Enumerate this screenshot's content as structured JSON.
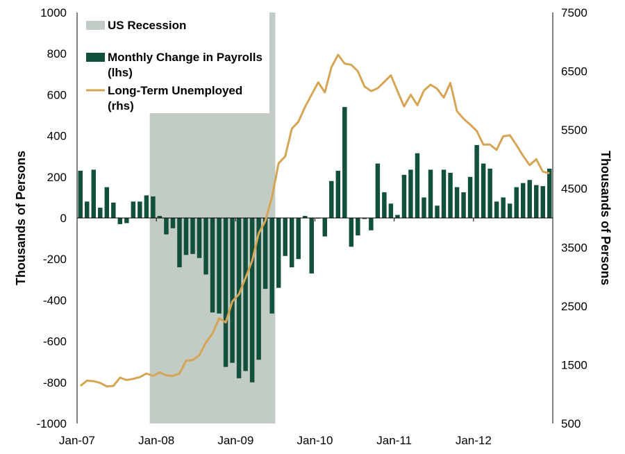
{
  "chart_data": {
    "type": "bar",
    "legend_placement": "top-left",
    "grid": false,
    "x_tick_labels": [
      "Jan-07",
      "Jan-08",
      "Jan-09",
      "Jan-10",
      "Jan-11",
      "Jan-12"
    ],
    "ylabel": "Thousands of Persons",
    "y2label": "Thousands of Persons",
    "ylim": [
      -1000,
      1000
    ],
    "y2lim": [
      500,
      7500
    ],
    "y_ticks": [
      -1000,
      -800,
      -600,
      -400,
      -200,
      0,
      200,
      400,
      600,
      800,
      1000
    ],
    "y2_ticks": [
      500,
      1500,
      2500,
      3500,
      4500,
      5500,
      6500,
      7500
    ],
    "start_month": "2007-01",
    "recession": {
      "name": "US Recession",
      "start": "2007-12",
      "end": "2009-06",
      "color": "#c3cbc5"
    },
    "series": [
      {
        "name": "Monthly Change in Payrolls (lhs)",
        "type": "bar",
        "axis": "left",
        "color": "#11503d",
        "values": [
          230,
          80,
          235,
          50,
          150,
          75,
          -30,
          -25,
          80,
          80,
          110,
          105,
          10,
          -80,
          -50,
          -240,
          -180,
          -175,
          -195,
          -275,
          -460,
          -465,
          -725,
          -705,
          -780,
          -745,
          -800,
          -690,
          -345,
          -465,
          -340,
          -185,
          -240,
          -200,
          10,
          -270,
          -3,
          -90,
          180,
          230,
          540,
          -140,
          -85,
          -5,
          -60,
          265,
          125,
          70,
          15,
          210,
          235,
          315,
          100,
          235,
          60,
          235,
          220,
          150,
          125,
          200,
          355,
          265,
          240,
          80,
          100,
          70,
          150,
          170,
          185,
          160,
          155,
          240
        ]
      },
      {
        "name": "Long-Term Unemployed (rhs)",
        "type": "line",
        "axis": "right",
        "color": "#d6a553",
        "values": [
          1140,
          1230,
          1220,
          1190,
          1130,
          1140,
          1280,
          1240,
          1260,
          1290,
          1350,
          1310,
          1370,
          1320,
          1310,
          1350,
          1570,
          1580,
          1660,
          1880,
          2030,
          2290,
          2220,
          2580,
          2700,
          2980,
          3270,
          3740,
          3950,
          4360,
          4930,
          5050,
          5520,
          5640,
          5890,
          6100,
          6310,
          6140,
          6570,
          6780,
          6630,
          6610,
          6500,
          6240,
          6160,
          6210,
          6320,
          6430,
          6160,
          5900,
          6100,
          5920,
          6170,
          6270,
          6200,
          6050,
          6300,
          5820,
          5690,
          5590,
          5480,
          5250,
          5250,
          5160,
          5390,
          5410,
          5240,
          5060,
          4900,
          5000,
          4790,
          4760
        ]
      }
    ]
  }
}
